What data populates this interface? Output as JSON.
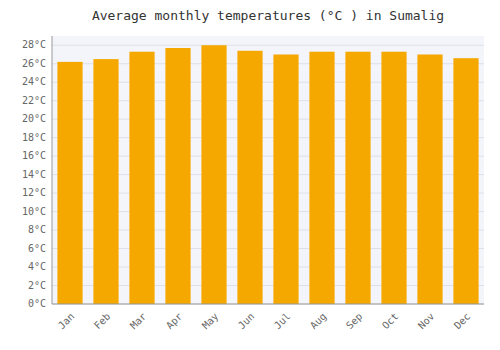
{
  "chart_data": {
    "type": "bar",
    "title": "Average monthly temperatures (°C ) in Sumalig",
    "categories": [
      "Jan",
      "Feb",
      "Mar",
      "Apr",
      "May",
      "Jun",
      "Jul",
      "Aug",
      "Sep",
      "Oct",
      "Nov",
      "Dec"
    ],
    "values": [
      26.2,
      26.5,
      27.3,
      27.7,
      28.0,
      27.4,
      27.0,
      27.3,
      27.3,
      27.3,
      27.0,
      26.6
    ],
    "color": "#F5A800",
    "ylim": [
      0,
      29
    ],
    "yticks": [
      {
        "value": 0,
        "label": "0°C"
      },
      {
        "value": 2,
        "label": "2°C"
      },
      {
        "value": 4,
        "label": "4°C"
      },
      {
        "value": 6,
        "label": "6°C"
      },
      {
        "value": 8,
        "label": "8°C"
      },
      {
        "value": 10,
        "label": "10°C"
      },
      {
        "value": 12,
        "label": "12°C"
      },
      {
        "value": 14,
        "label": "14°C"
      },
      {
        "value": 16,
        "label": "16°C"
      },
      {
        "value": 18,
        "label": "18°C"
      },
      {
        "value": 20,
        "label": "20°C"
      },
      {
        "value": 22,
        "label": "22°C"
      },
      {
        "value": 24,
        "label": "24°C"
      },
      {
        "value": 26,
        "label": "26°C"
      },
      {
        "value": 28,
        "label": "28°C"
      }
    ],
    "grid": true
  }
}
